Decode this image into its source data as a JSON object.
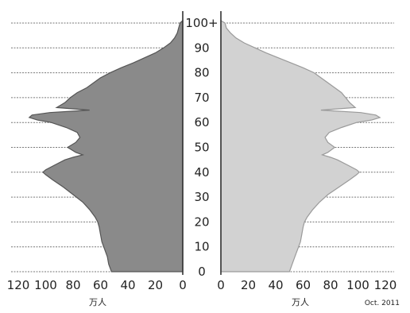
{
  "chart_data": {
    "type": "bar",
    "orientation": "horizontal-butterfly",
    "grid": true,
    "age_tick_labels": [
      "0",
      "10",
      "20",
      "30",
      "40",
      "50",
      "60",
      "70",
      "80",
      "90",
      "100+"
    ],
    "age_ticks": [
      0,
      10,
      20,
      30,
      40,
      50,
      60,
      70,
      80,
      90,
      100
    ],
    "x_tick_labels_left": [
      "120",
      "100",
      "80",
      "60",
      "40",
      "20",
      "0"
    ],
    "x_ticks_left": [
      120,
      100,
      80,
      60,
      40,
      20,
      0
    ],
    "x_tick_labels_right": [
      "0",
      "20",
      "40",
      "60",
      "80",
      "100",
      "120"
    ],
    "x_ticks_right": [
      0,
      20,
      40,
      60,
      80,
      100,
      120
    ],
    "xlim": [
      0,
      125
    ],
    "unit_label_left": "万人",
    "unit_label_right": "万人",
    "note": "Oct. 2011",
    "colors": {
      "left": "#8a8a8a",
      "left_edge": "#555555",
      "right": "#d2d2d2",
      "right_edge": "#9a9a9a",
      "grid": "#777777"
    },
    "left_profile": [
      [
        0,
        52
      ],
      [
        3,
        54
      ],
      [
        6,
        55
      ],
      [
        9,
        57
      ],
      [
        12,
        59
      ],
      [
        15,
        60
      ],
      [
        18,
        61
      ],
      [
        20,
        62
      ],
      [
        22,
        64
      ],
      [
        25,
        68
      ],
      [
        28,
        73
      ],
      [
        31,
        80
      ],
      [
        34,
        87
      ],
      [
        37,
        95
      ],
      [
        39,
        100
      ],
      [
        40,
        102
      ],
      [
        41,
        100
      ],
      [
        43,
        93
      ],
      [
        45,
        86
      ],
      [
        46,
        80
      ],
      [
        47,
        73
      ],
      [
        48,
        78
      ],
      [
        50,
        84
      ],
      [
        52,
        78
      ],
      [
        54,
        75
      ],
      [
        56,
        77
      ],
      [
        58,
        85
      ],
      [
        60,
        96
      ],
      [
        61,
        106
      ],
      [
        62,
        112
      ],
      [
        63,
        110
      ],
      [
        64,
        97
      ],
      [
        65,
        68
      ],
      [
        66,
        92
      ],
      [
        68,
        86
      ],
      [
        70,
        82
      ],
      [
        72,
        77
      ],
      [
        74,
        70
      ],
      [
        76,
        65
      ],
      [
        78,
        60
      ],
      [
        80,
        53
      ],
      [
        82,
        45
      ],
      [
        84,
        36
      ],
      [
        86,
        28
      ],
      [
        88,
        20
      ],
      [
        90,
        14
      ],
      [
        92,
        9
      ],
      [
        94,
        6
      ],
      [
        96,
        4
      ],
      [
        98,
        3
      ],
      [
        100,
        2
      ]
    ],
    "right_profile": [
      [
        0,
        50
      ],
      [
        3,
        52
      ],
      [
        6,
        54
      ],
      [
        9,
        56
      ],
      [
        12,
        58
      ],
      [
        15,
        59
      ],
      [
        18,
        60
      ],
      [
        20,
        61
      ],
      [
        22,
        63
      ],
      [
        25,
        67
      ],
      [
        28,
        72
      ],
      [
        31,
        78
      ],
      [
        34,
        86
      ],
      [
        37,
        94
      ],
      [
        39,
        99
      ],
      [
        40,
        101
      ],
      [
        41,
        99
      ],
      [
        43,
        92
      ],
      [
        45,
        85
      ],
      [
        46,
        80
      ],
      [
        47,
        74
      ],
      [
        48,
        78
      ],
      [
        50,
        83
      ],
      [
        52,
        78
      ],
      [
        54,
        76
      ],
      [
        56,
        79
      ],
      [
        58,
        88
      ],
      [
        60,
        99
      ],
      [
        61,
        110
      ],
      [
        62,
        116
      ],
      [
        63,
        113
      ],
      [
        64,
        102
      ],
      [
        65,
        73
      ],
      [
        66,
        98
      ],
      [
        68,
        94
      ],
      [
        70,
        91
      ],
      [
        72,
        88
      ],
      [
        74,
        83
      ],
      [
        76,
        78
      ],
      [
        78,
        73
      ],
      [
        80,
        68
      ],
      [
        82,
        60
      ],
      [
        84,
        51
      ],
      [
        86,
        42
      ],
      [
        88,
        33
      ],
      [
        90,
        25
      ],
      [
        92,
        17
      ],
      [
        94,
        11
      ],
      [
        96,
        7
      ],
      [
        98,
        4
      ],
      [
        100,
        3
      ]
    ]
  }
}
